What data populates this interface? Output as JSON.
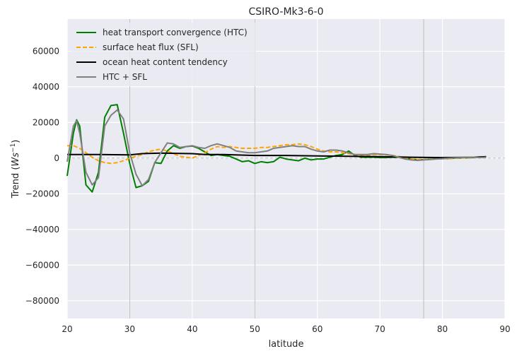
{
  "chart_data": {
    "type": "line",
    "title": "CSIRO-Mk3-6-0",
    "xlabel": "latitude",
    "ylabel_main": "Trend (",
    "ylabel_math": "Ws",
    "ylabel_exp": "−1",
    "ylabel_close": ")",
    "xlim": [
      20,
      90
    ],
    "ylim": [
      -90000,
      78000
    ],
    "xticks": [
      20,
      30,
      40,
      50,
      60,
      70,
      80,
      90
    ],
    "yticks": [
      -80000,
      -60000,
      -40000,
      -20000,
      0,
      20000,
      40000,
      60000
    ],
    "ytick_labels": [
      "−80000",
      "−60000",
      "−40000",
      "−20000",
      "0",
      "20000",
      "40000",
      "60000"
    ],
    "grid": true,
    "legend_position": "top-left",
    "vlines": [
      30,
      50,
      77
    ],
    "hline_zero": true,
    "series": [
      {
        "name": "heat transport convergence (HTC)",
        "color": "#008000",
        "dash": "solid",
        "x": [
          20,
          21,
          21.5,
          22,
          23,
          24,
          25,
          26,
          27,
          28,
          29,
          30,
          31,
          32,
          33,
          34,
          35,
          36,
          37,
          38,
          39,
          40,
          41,
          42,
          43,
          44,
          45,
          46,
          47,
          48,
          49,
          50,
          51,
          52,
          53,
          54,
          55,
          56,
          57,
          58,
          59,
          60,
          61,
          62,
          63,
          64,
          65,
          66,
          67,
          68,
          69,
          70,
          71,
          72,
          73,
          74,
          75,
          76,
          77,
          78,
          79,
          80,
          81,
          82,
          83,
          84,
          85,
          86,
          87
        ],
        "y": [
          -10000,
          14000,
          21500,
          18000,
          -15000,
          -19000,
          -8000,
          23000,
          29500,
          30000,
          14000,
          -3000,
          -16500,
          -15500,
          -13000,
          -2500,
          -3000,
          4000,
          7000,
          5500,
          6500,
          6800,
          5500,
          3500,
          1500,
          2000,
          1500,
          1000,
          -500,
          -2000,
          -1500,
          -3000,
          -2000,
          -2500,
          -2000,
          500,
          -500,
          -1000,
          -1500,
          0,
          -1000,
          -500,
          -500,
          500,
          1500,
          2000,
          4000,
          1500,
          500,
          500,
          500,
          300,
          300,
          500,
          400,
          300,
          -500,
          -1000,
          -800,
          -600,
          -400,
          -300,
          -200,
          0,
          100,
          200,
          300,
          400,
          500
        ]
      },
      {
        "name": "surface heat flux (SFL)",
        "color": "#ffa500",
        "dash": "dashed",
        "x": [
          20,
          21,
          22,
          23,
          24,
          25,
          26,
          27,
          28,
          29,
          30,
          31,
          32,
          33,
          34,
          35,
          36,
          37,
          38,
          39,
          40,
          41,
          42,
          43,
          44,
          45,
          46,
          47,
          48,
          49,
          50,
          51,
          52,
          53,
          54,
          55,
          56,
          57,
          58,
          59,
          60,
          61,
          62,
          63,
          64,
          65,
          66,
          67,
          68,
          69,
          70,
          71,
          72,
          73,
          74,
          75,
          76,
          77,
          78,
          79,
          80,
          81,
          82,
          83,
          84,
          85,
          86,
          87
        ],
        "y": [
          7000,
          7000,
          5500,
          3000,
          500,
          -1500,
          -2500,
          -3000,
          -2500,
          -1500,
          0,
          1000,
          2000,
          3500,
          4500,
          5000,
          4000,
          2500,
          1000,
          500,
          0,
          1500,
          3000,
          5000,
          6500,
          6000,
          6500,
          6000,
          5500,
          5500,
          5500,
          6000,
          6000,
          6500,
          7000,
          7500,
          7500,
          8000,
          7500,
          6500,
          5000,
          4000,
          3500,
          3500,
          3000,
          2500,
          2000,
          1500,
          1500,
          2000,
          2000,
          1800,
          1500,
          1000,
          0,
          -500,
          -700,
          -800,
          -700,
          -500,
          -300,
          -200,
          0,
          100,
          200,
          300,
          400,
          500
        ]
      },
      {
        "name": "ocean heat content tendency",
        "color": "#000000",
        "dash": "solid",
        "x": [
          20,
          25,
          30,
          32,
          35,
          40,
          42,
          45,
          50,
          55,
          60,
          65,
          70,
          75,
          80,
          85,
          87
        ],
        "y": [
          2000,
          2000,
          1800,
          2500,
          2800,
          2500,
          2000,
          2000,
          1500,
          1500,
          1200,
          1000,
          800,
          500,
          300,
          500,
          800
        ]
      },
      {
        "name": "HTC + SFL",
        "color": "#808080",
        "dash": "solid",
        "x": [
          20,
          21,
          21.5,
          22,
          23,
          24,
          25,
          26,
          27,
          28,
          29,
          30,
          31,
          32,
          33,
          34,
          35,
          36,
          37,
          38,
          39,
          40,
          41,
          42,
          43,
          44,
          45,
          46,
          47,
          48,
          49,
          50,
          51,
          52,
          53,
          54,
          55,
          56,
          57,
          58,
          59,
          60,
          61,
          62,
          63,
          64,
          65,
          66,
          67,
          68,
          69,
          70,
          71,
          72,
          73,
          74,
          75,
          76,
          77,
          78,
          79,
          80,
          81,
          82,
          83,
          84,
          85,
          86,
          87
        ],
        "y": [
          -2000,
          18000,
          21000,
          14000,
          -8000,
          -15000,
          -11000,
          18000,
          24000,
          27000,
          22000,
          3000,
          -9000,
          -15500,
          -12000,
          -2500,
          3000,
          8500,
          8000,
          6000,
          6500,
          7000,
          6000,
          5500,
          7000,
          8000,
          7000,
          6000,
          4000,
          3500,
          3000,
          3000,
          3500,
          4000,
          5500,
          6000,
          6500,
          7000,
          6500,
          6500,
          5000,
          4000,
          3500,
          4500,
          4500,
          4000,
          3000,
          2000,
          2000,
          2000,
          2500,
          2300,
          2000,
          1500,
          500,
          -500,
          -1000,
          -1300,
          -1000,
          -800,
          -500,
          -300,
          0,
          200,
          300,
          400,
          500,
          300,
          500
        ]
      }
    ]
  }
}
